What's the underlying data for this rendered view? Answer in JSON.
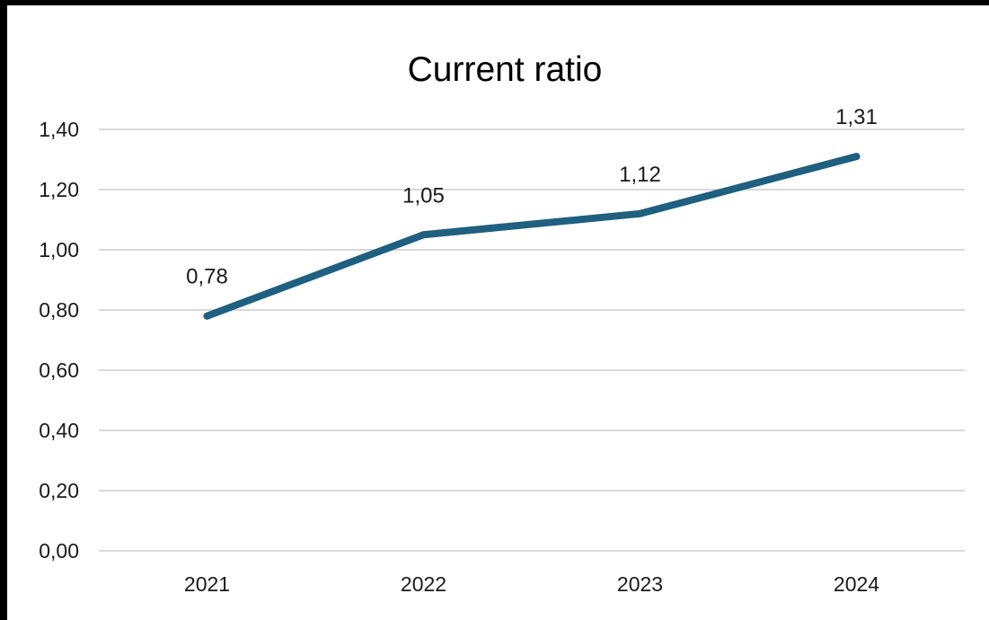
{
  "chart_data": {
    "type": "line",
    "title": "Current ratio",
    "categories": [
      "2021",
      "2022",
      "2023",
      "2024"
    ],
    "series": [
      {
        "values": [
          0.78,
          1.05,
          1.12,
          1.31
        ],
        "data_labels": [
          "0,78",
          "1,05",
          "1,12",
          "1,31"
        ],
        "color": "#1f5f7f"
      }
    ],
    "y_ticks": [
      {
        "value": 0.0,
        "label": "0,00"
      },
      {
        "value": 0.2,
        "label": "0,20"
      },
      {
        "value": 0.4,
        "label": "0,40"
      },
      {
        "value": 0.6,
        "label": "0,60"
      },
      {
        "value": 0.8,
        "label": "0,80"
      },
      {
        "value": 1.0,
        "label": "1,00"
      },
      {
        "value": 1.2,
        "label": "1,20"
      },
      {
        "value": 1.4,
        "label": "1,40"
      }
    ],
    "ylim": [
      0,
      1.4
    ],
    "grid": true,
    "gridline_color": "#d9d9d9",
    "legend": "none"
  }
}
